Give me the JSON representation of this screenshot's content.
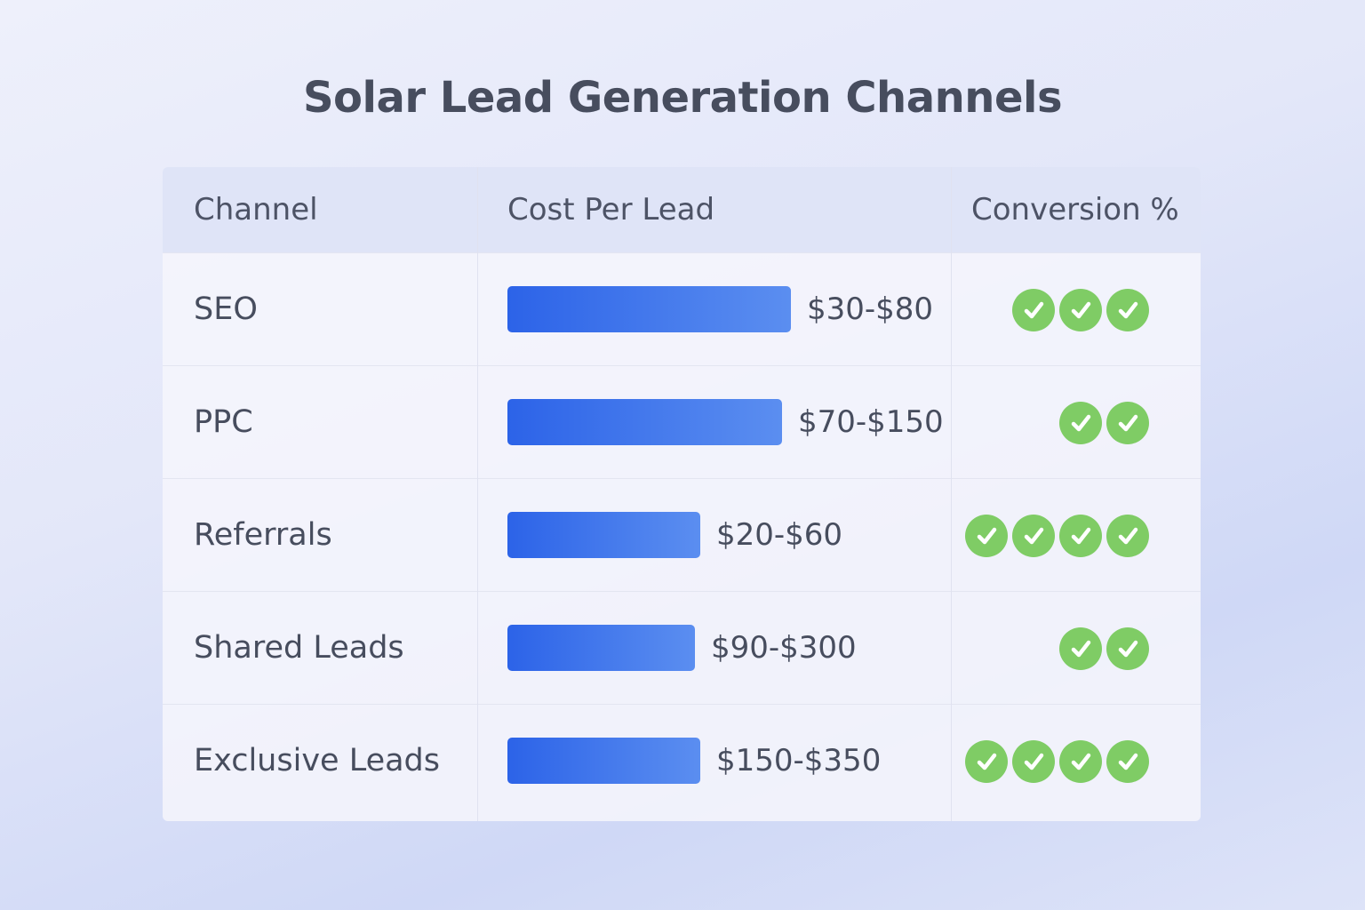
{
  "title": "Solar Lead Generation Channels",
  "colors": {
    "bar": "#3a6fea",
    "check": "#7fcc65",
    "text": "#474d5e"
  },
  "chart_data": {
    "type": "table",
    "title": "Solar Lead Generation Channels",
    "columns": [
      "Channel",
      "Cost Per Lead",
      "Conversion %"
    ],
    "rows": [
      {
        "channel": "SEO",
        "cost": "$30-$80",
        "bar_fill": 1.0,
        "checks": 3
      },
      {
        "channel": "PPC",
        "cost": "$70-$150",
        "bar_fill": 0.97,
        "checks": 2
      },
      {
        "channel": "Referrals",
        "cost": "$20-$60",
        "bar_fill": 0.68,
        "checks": 4
      },
      {
        "channel": "Shared Leads",
        "cost": "$90-$300",
        "bar_fill": 0.66,
        "checks": 2
      },
      {
        "channel": "Exclusive Leads",
        "cost": "$150-$350",
        "bar_fill": 0.68,
        "checks": 4
      }
    ],
    "icon": "check-circle-icon"
  }
}
